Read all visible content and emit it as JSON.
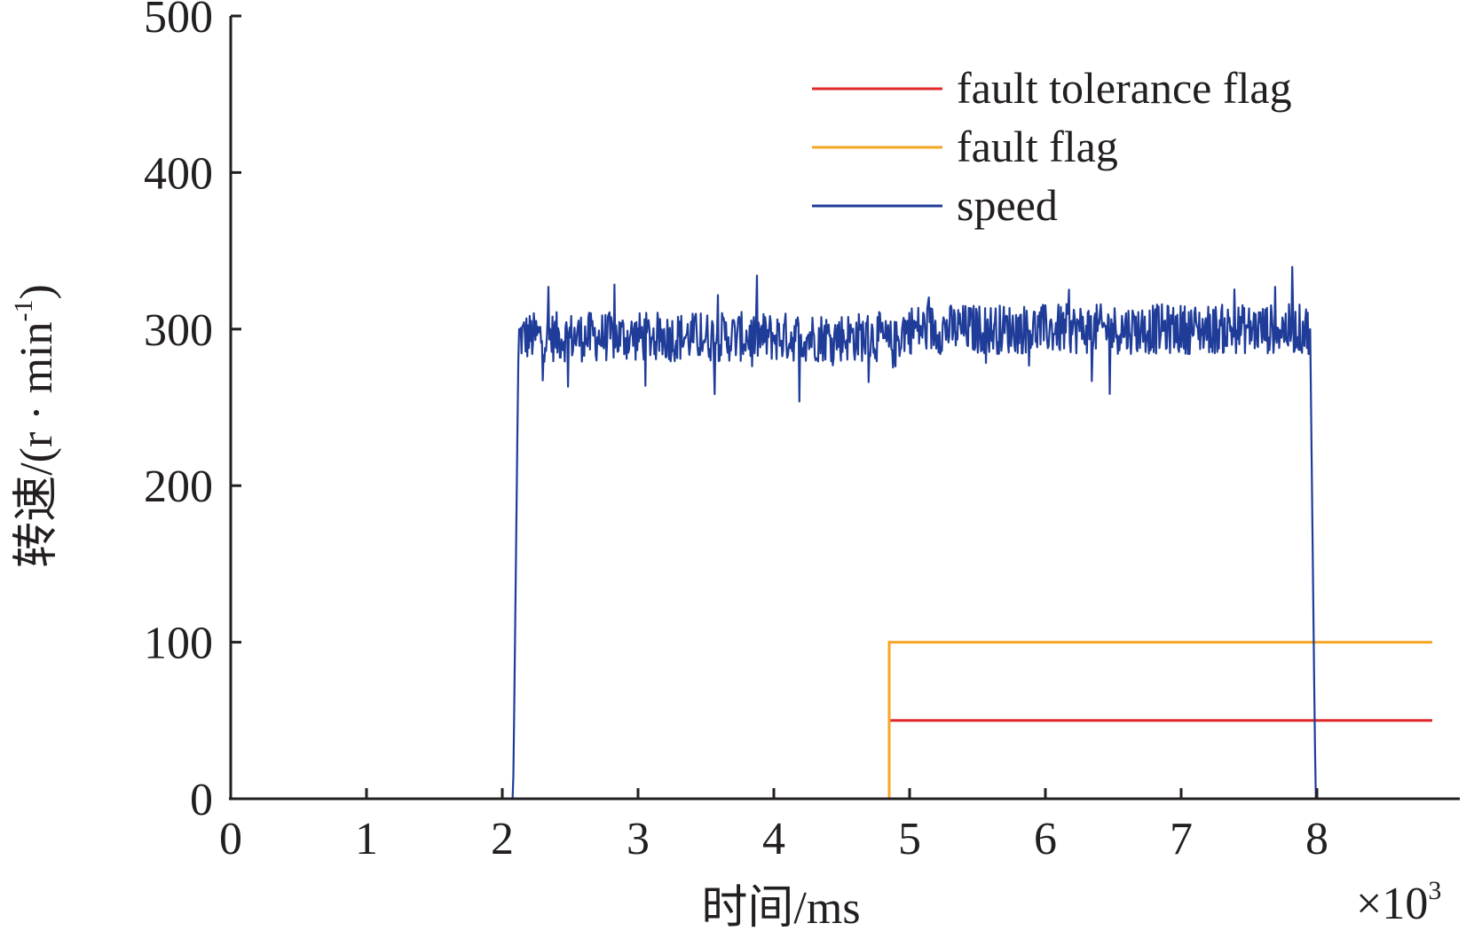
{
  "chart_data": {
    "type": "line",
    "xlabel": "时间/ms",
    "x_multiplier_label": "×10",
    "x_multiplier_exponent": "3",
    "ylabel": "转速/(r · min",
    "ylabel_exponent": "-1",
    "ylabel_close": ")",
    "xlim": [
      0,
      8.85
    ],
    "ylim": [
      0,
      500
    ],
    "x_ticks": [
      0,
      1,
      2,
      3,
      4,
      5,
      6,
      7,
      8
    ],
    "x_tick_labels": [
      "0",
      "1",
      "2",
      "3",
      "4",
      "5",
      "6",
      "7",
      "8"
    ],
    "y_ticks": [
      0,
      100,
      200,
      300,
      400,
      500
    ],
    "y_tick_labels": [
      "0",
      "100",
      "200",
      "300",
      "400",
      "500"
    ],
    "grid": false,
    "legend_position": "top-right",
    "series": [
      {
        "name": "fault tolerance flag",
        "color": "#e02828",
        "style": "step",
        "points": [
          [
            0,
            0
          ],
          [
            4.85,
            0
          ],
          [
            4.85,
            50
          ],
          [
            8.85,
            50
          ]
        ]
      },
      {
        "name": "fault flag",
        "color": "#f5a623",
        "style": "step",
        "points": [
          [
            0,
            0
          ],
          [
            4.85,
            0
          ],
          [
            4.85,
            100
          ],
          [
            8.85,
            100
          ]
        ]
      },
      {
        "name": "speed",
        "color": "#1f3c99",
        "style": "noisy",
        "points": [
          [
            0,
            0
          ],
          [
            2.08,
            0
          ],
          [
            2.12,
            295
          ],
          [
            4.8,
            295
          ],
          [
            4.83,
            290
          ],
          [
            4.9,
            290
          ],
          [
            4.95,
            300
          ],
          [
            7.95,
            300
          ],
          [
            7.99,
            0
          ],
          [
            8.85,
            0
          ]
        ],
        "noise_amplitude": 16,
        "noise_start": 2.12,
        "noise_end": 7.95
      }
    ]
  }
}
